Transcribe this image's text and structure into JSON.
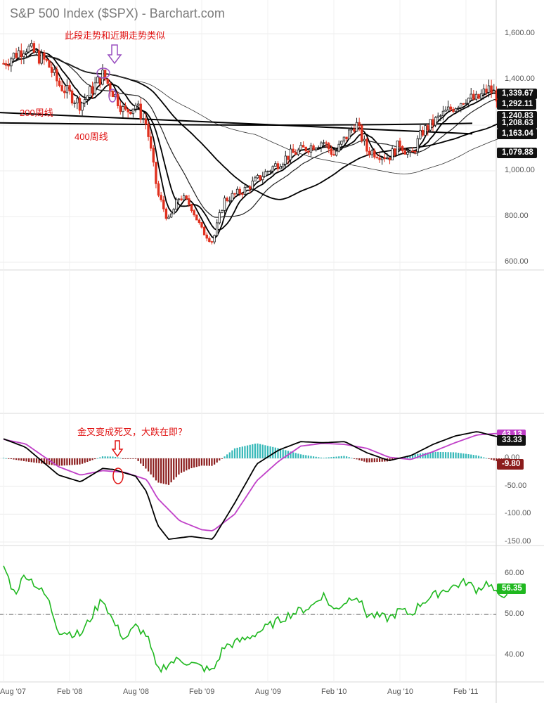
{
  "header": {
    "title": "S&P 500 Index ($SPX) - Barchart.com"
  },
  "annotations": {
    "top_note": "此段走势和近期走势类似",
    "ma200": "200周线",
    "ma400": "400周线",
    "macd_note": "金叉变成死叉，大跌在即？"
  },
  "colors": {
    "up": "#1a1a1a",
    "down": "#e0301e",
    "macd_signal": "#c040c8",
    "hist_pos": "#35b8b8",
    "hist_neg": "#8b1c1c",
    "rsi": "#1fb81f",
    "annotation": "#e01010",
    "arrow": "#9a50c0"
  },
  "chart_data": [
    {
      "type": "candlestick",
      "title": "S&P 500 Index ($SPX) - Barchart.com",
      "period": "weekly",
      "x_ticks": [
        "Aug '07",
        "Feb '08",
        "Aug '08",
        "Feb '09",
        "Aug '09",
        "Feb '10",
        "Aug '10",
        "Feb '11"
      ],
      "y_ticks": [
        "600.00",
        "800.00",
        "1,000.00",
        "1,200.00",
        "1,400.00",
        "1,600.00"
      ],
      "ylim": [
        600,
        1700
      ],
      "close_path": [
        [
          "Aug '07",
          1470
        ],
        [
          "Oct '07",
          1545
        ],
        [
          "Dec '07",
          1470
        ],
        [
          "Jan '08",
          1380
        ],
        [
          "Mar '08",
          1290
        ],
        [
          "May '08",
          1420
        ],
        [
          "Jun '08",
          1340
        ],
        [
          "Jul '08",
          1255
        ],
        [
          "Aug '08",
          1290
        ],
        [
          "Sep '08",
          1200
        ],
        [
          "Oct '08",
          900
        ],
        [
          "Nov '08",
          780
        ],
        [
          "Dec '08",
          890
        ],
        [
          "Jan '09",
          850
        ],
        [
          "Feb '09",
          740
        ],
        [
          "Mar '09",
          690
        ],
        [
          "Apr '09",
          870
        ],
        [
          "Jun '09",
          920
        ],
        [
          "Aug '09",
          1000
        ],
        [
          "Oct '09",
          1070
        ],
        [
          "Dec '09",
          1110
        ],
        [
          "Jan '10",
          1130
        ],
        [
          "Feb '10",
          1070
        ],
        [
          "Apr '10",
          1210
        ],
        [
          "May '10",
          1090
        ],
        [
          "Jul '10",
          1060
        ],
        [
          "Aug '10",
          1120
        ],
        [
          "Sep '10",
          1060
        ],
        [
          "Oct '10",
          1170
        ],
        [
          "Dec '10",
          1250
        ],
        [
          "Feb '11",
          1320
        ],
        [
          "Mar '11",
          1310
        ],
        [
          "Apr '11",
          1360
        ],
        [
          "Jun '11",
          1280
        ],
        [
          "Jun '11",
          1339.67
        ]
      ],
      "price_labels": [
        "1,339.67",
        "1,292.11",
        "1,240.83",
        "1,208.63",
        "1,163.04",
        "1,079.88"
      ]
    },
    {
      "type": "line",
      "indicator": "MACD",
      "y_ticks": [
        "-150.00",
        "-100.00",
        "-50.00",
        "0.00"
      ],
      "ylim": [
        -150,
        50
      ],
      "macd_path": [
        [
          "Aug '07",
          35
        ],
        [
          "Oct '07",
          20
        ],
        [
          "Jan '08",
          -30
        ],
        [
          "Mar '08",
          -42
        ],
        [
          "May '08",
          -18
        ],
        [
          "Jun '08",
          -20
        ],
        [
          "Aug '08",
          -32
        ],
        [
          "Sep '08",
          -60
        ],
        [
          "Oct '08",
          -120
        ],
        [
          "Nov '08",
          -145
        ],
        [
          "Jan '09",
          -140
        ],
        [
          "Mar '09",
          -145
        ],
        [
          "May '09",
          -80
        ],
        [
          "Jul '09",
          -10
        ],
        [
          "Sep '09",
          15
        ],
        [
          "Nov '09",
          30
        ],
        [
          "Jan '10",
          28
        ],
        [
          "Mar '10",
          30
        ],
        [
          "May '10",
          10
        ],
        [
          "Jul '10",
          -4
        ],
        [
          "Sep '10",
          5
        ],
        [
          "Nov '10",
          25
        ],
        [
          "Jan '11",
          40
        ],
        [
          "Mar '11",
          48
        ],
        [
          "May '11",
          38
        ],
        [
          "Jun '11",
          33.33
        ]
      ],
      "signal_path": [
        [
          "Aug '07",
          34
        ],
        [
          "Oct '07",
          26
        ],
        [
          "Jan '08",
          -15
        ],
        [
          "Mar '08",
          -30
        ],
        [
          "May '08",
          -22
        ],
        [
          "Jul '08",
          -25
        ],
        [
          "Sep '08",
          -38
        ],
        [
          "Oct '08",
          -72
        ],
        [
          "Dec '08",
          -112
        ],
        [
          "Feb '09",
          -128
        ],
        [
          "Mar '09",
          -130
        ],
        [
          "May '09",
          -100
        ],
        [
          "Jul '09",
          -40
        ],
        [
          "Sep '09",
          -5
        ],
        [
          "Nov '09",
          22
        ],
        [
          "Jan '10",
          27
        ],
        [
          "Mar '10",
          25
        ],
        [
          "May '10",
          18
        ],
        [
          "Jul '10",
          2
        ],
        [
          "Sep '10",
          -2
        ],
        [
          "Nov '10",
          12
        ],
        [
          "Jan '11",
          28
        ],
        [
          "Mar '11",
          42
        ],
        [
          "May '11",
          45
        ],
        [
          "Jun '11",
          43.13
        ]
      ],
      "value_labels": [
        "43.13",
        "33.33",
        "-9.80"
      ]
    },
    {
      "type": "line",
      "indicator": "RSI",
      "y_ticks": [
        "40.00",
        "50.00",
        "60.00"
      ],
      "ylim": [
        33,
        66
      ],
      "reference_line": 50,
      "rsi_path": [
        [
          "Aug '07",
          62
        ],
        [
          "Sep '07",
          55
        ],
        [
          "Oct '07",
          60
        ],
        [
          "Dec '07",
          54
        ],
        [
          "Jan '08",
          46
        ],
        [
          "Mar '08",
          45
        ],
        [
          "May '08",
          54
        ],
        [
          "Jun '08",
          48
        ],
        [
          "Jul '08",
          44
        ],
        [
          "Aug '08",
          47
        ],
        [
          "Sep '08",
          45
        ],
        [
          "Oct '08",
          36
        ],
        [
          "Nov '08",
          38
        ],
        [
          "Dec '08",
          39
        ],
        [
          "Jan '09",
          38
        ],
        [
          "Feb '09",
          37
        ],
        [
          "Mar '09",
          36
        ],
        [
          "Apr '09",
          42
        ],
        [
          "Jun '09",
          44
        ],
        [
          "Aug '09",
          47
        ],
        [
          "Oct '09",
          50
        ],
        [
          "Dec '09",
          52
        ],
        [
          "Jan '10",
          55
        ],
        [
          "Feb '10",
          51
        ],
        [
          "Apr '10",
          55
        ],
        [
          "May '10",
          50
        ],
        [
          "Jul '10",
          49
        ],
        [
          "Aug '10",
          51
        ],
        [
          "Sep '10",
          50
        ],
        [
          "Oct '10",
          53
        ],
        [
          "Dec '10",
          56
        ],
        [
          "Feb '11",
          58
        ],
        [
          "Mar '11",
          56
        ],
        [
          "Apr '11",
          58
        ],
        [
          "May '11",
          54
        ],
        [
          "Jun '11",
          56.35
        ]
      ],
      "value_label": "56.35"
    }
  ]
}
